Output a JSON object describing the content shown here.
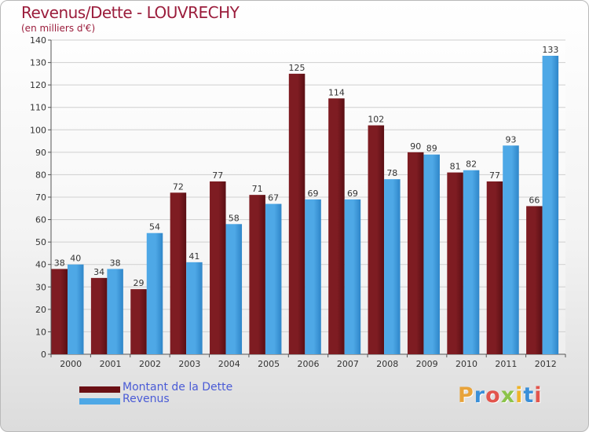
{
  "title": "Revenus/Dette - LOUVRECHY",
  "subtitle": "(en milliers d'€)",
  "logo_text": "Proxiti",
  "colors": {
    "debt": "#7e1c22",
    "debt_dark": "#5a0f14",
    "revenue": "#4ea8e6",
    "revenue_dark": "#2f86c9",
    "title": "#9b1d3c",
    "legend_text": "#4a5bd6"
  },
  "legend": [
    {
      "label": "Montant de la Dette",
      "color": "#6a0f14"
    },
    {
      "label": "Revenus",
      "color": "#4ea8e6"
    }
  ],
  "chart_data": {
    "type": "bar",
    "categories": [
      "2000",
      "2001",
      "2002",
      "2003",
      "2004",
      "2005",
      "2006",
      "2007",
      "2008",
      "2009",
      "2010",
      "2011",
      "2012"
    ],
    "series": [
      {
        "name": "Montant de la Dette",
        "values": [
          38,
          34,
          29,
          72,
          77,
          71,
          125,
          114,
          102,
          90,
          81,
          77,
          66
        ]
      },
      {
        "name": "Revenus",
        "values": [
          40,
          38,
          54,
          41,
          58,
          67,
          69,
          69,
          78,
          89,
          82,
          93,
          133
        ]
      }
    ],
    "ylim": [
      0,
      140
    ],
    "yticks": [
      0,
      10,
      20,
      30,
      40,
      50,
      60,
      70,
      80,
      90,
      100,
      110,
      120,
      130,
      140
    ],
    "grid": true,
    "legend_position": "bottom-left"
  }
}
